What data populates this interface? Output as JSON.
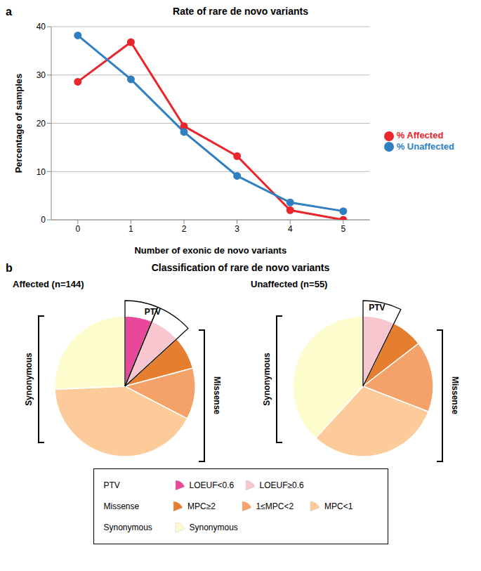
{
  "panel_labels": [
    "a",
    "b"
  ],
  "panel_b_title": "Classification of rare de novo variants",
  "chart_data": [
    {
      "type": "line",
      "title": "Rate of rare de novo variants",
      "xlabel": "Number of exonic de novo variants",
      "ylabel": "Percentage of samples",
      "x": [
        0,
        1,
        2,
        3,
        4,
        5
      ],
      "series": [
        {
          "name": "% Affected",
          "color": "#e8262b",
          "marker": "circle",
          "values": [
            28.6,
            36.8,
            19.4,
            13.2,
            2.0,
            0
          ]
        },
        {
          "name": "% Unaffected",
          "color": "#2f7fc1",
          "marker": "circle",
          "values": [
            38.2,
            29.1,
            18.2,
            9.1,
            3.6,
            1.8
          ]
        }
      ],
      "xlim": [
        -0.5,
        5.5
      ],
      "xticks": [
        0,
        1,
        2,
        3,
        4,
        5
      ],
      "ylim": [
        0,
        40
      ],
      "yticks": [
        0,
        10,
        20,
        30,
        40
      ],
      "grid": true,
      "legend": "right"
    },
    {
      "type": "pie",
      "title": "Affected (n=144)",
      "categories": [
        "LOEUF<0.6",
        "LOEUF≥0.6",
        "MPC≥2",
        "1≤MPC<2",
        "MPC<1",
        "Synonymous"
      ],
      "values": [
        9,
        10,
        11,
        17,
        60,
        37
      ],
      "colors": [
        "#e8479a",
        "#f7c6cf",
        "#e67e30",
        "#f5a26a",
        "#fdcb9a",
        "#fdfccc"
      ],
      "groups": [
        {
          "name": "PTV",
          "members": [
            0,
            1
          ]
        },
        {
          "name": "Missense",
          "members": [
            2,
            3,
            4
          ]
        },
        {
          "name": "Synonymous",
          "members": [
            5
          ]
        }
      ]
    },
    {
      "type": "pie",
      "title": "Unaffected (n=55)",
      "categories": [
        "LOEUF<0.6",
        "LOEUF≥0.6",
        "MPC≥2",
        "1≤MPC<2",
        "MPC<1",
        "Synonymous"
      ],
      "values": [
        0,
        4,
        4,
        9,
        17,
        21
      ],
      "colors": [
        "#e8479a",
        "#f7c6cf",
        "#e67e30",
        "#f5a26a",
        "#fdcb9a",
        "#fdfccc"
      ],
      "groups": [
        {
          "name": "PTV",
          "members": [
            0,
            1
          ]
        },
        {
          "name": "Missense",
          "members": [
            2,
            3,
            4
          ]
        },
        {
          "name": "Synonymous",
          "members": [
            5
          ]
        }
      ]
    }
  ]
}
